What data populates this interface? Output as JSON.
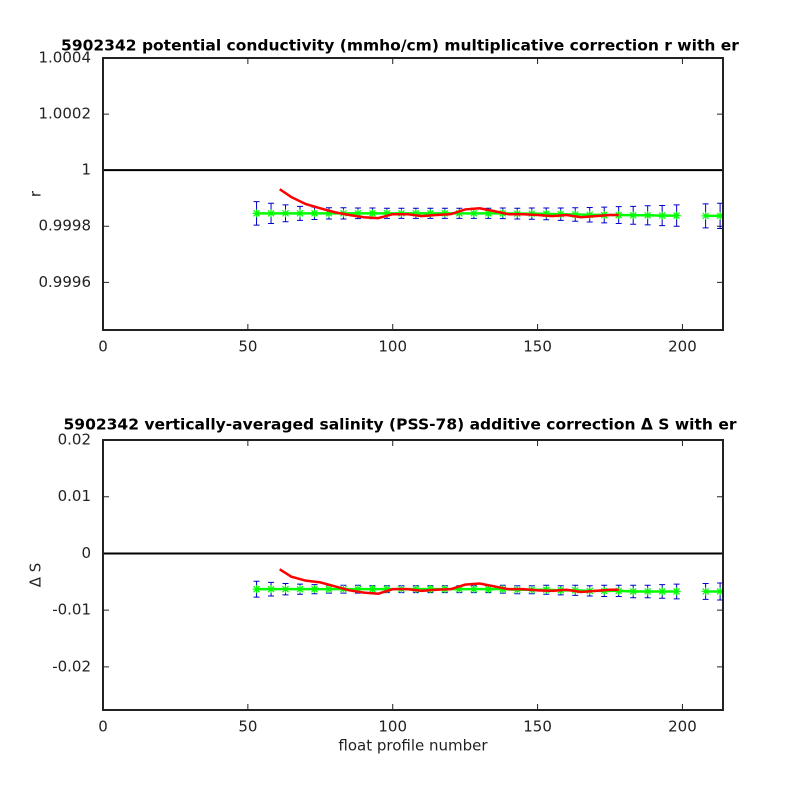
{
  "chart_data": [
    {
      "type": "line",
      "title": "5902342 potential conductivity (mmho/cm) multiplicative correction r with er",
      "ylabel": "r",
      "xlim": [
        0,
        214
      ],
      "xticks": [
        0,
        50,
        100,
        150,
        200
      ],
      "ylim": [
        0.99943,
        1.0004
      ],
      "yticks": [
        0.9996,
        0.9998,
        1,
        1.0002,
        1.0004
      ],
      "reference_line": 1,
      "series": [
        {
          "color": "#00ff00",
          "error_color": "#0000cc",
          "marker": "asterisk",
          "x": [
            53,
            58,
            63,
            68,
            73,
            78,
            83,
            88,
            93,
            98,
            103,
            108,
            113,
            118,
            123,
            128,
            133,
            138,
            143,
            148,
            153,
            158,
            163,
            168,
            173,
            178,
            183,
            188,
            193,
            198,
            203,
            208,
            213
          ],
          "values": [
            0.999846,
            0.999846,
            0.999846,
            0.999846,
            0.999846,
            0.999846,
            0.999846,
            0.999846,
            0.999846,
            0.999846,
            0.999846,
            0.999846,
            0.999846,
            0.999846,
            0.999846,
            0.999846,
            0.999846,
            0.999846,
            0.999845,
            0.999845,
            0.999844,
            0.999843,
            0.999842,
            0.999841,
            0.99984,
            0.99984,
            0.999839,
            0.999839,
            0.999838,
            0.999838,
            null,
            0.999837,
            0.999837
          ],
          "errors": [
            4.2e-05,
            3.6e-05,
            3e-05,
            2.5e-05,
            2.2e-05,
            2e-05,
            2e-05,
            1.9e-05,
            1.9e-05,
            1.8e-05,
            1.8e-05,
            1.8e-05,
            1.8e-05,
            1.8e-05,
            1.8e-05,
            1.8e-05,
            1.8e-05,
            1.9e-05,
            1.9e-05,
            2e-05,
            2.1e-05,
            2.2e-05,
            2.4e-05,
            2.6e-05,
            2.8e-05,
            3e-05,
            3.2e-05,
            3.4e-05,
            3.6e-05,
            3.8e-05,
            null,
            4.3e-05,
            4.5e-05
          ]
        },
        {
          "color": "#ff0000",
          "x": [
            61,
            65,
            70,
            75,
            80,
            85,
            90,
            95,
            100,
            105,
            110,
            115,
            120,
            125,
            130,
            135,
            140,
            145,
            150,
            155,
            160,
            165,
            170,
            175,
            178
          ],
          "values": [
            0.999932,
            0.999904,
            0.999879,
            0.999864,
            0.99985,
            0.99984,
            0.999832,
            0.999829,
            0.999843,
            0.999843,
            0.999836,
            0.99984,
            0.999843,
            0.99986,
            0.999864,
            0.999854,
            0.999843,
            0.999843,
            0.99984,
            0.999836,
            0.99984,
            0.999832,
            0.999836,
            0.99984,
            0.99984
          ]
        }
      ]
    },
    {
      "type": "line",
      "title": "5902342 vertically-averaged salinity (PSS-78) additive correction Δ S with er",
      "ylabel": "Δ S",
      "xlabel": "float profile number",
      "xlim": [
        0,
        214
      ],
      "xticks": [
        0,
        50,
        100,
        150,
        200
      ],
      "ylim": [
        -0.0276,
        0.02
      ],
      "yticks": [
        -0.02,
        -0.01,
        0,
        0.01,
        0.02
      ],
      "reference_line": 0,
      "series": [
        {
          "color": "#00ff00",
          "error_color": "#0000cc",
          "marker": "asterisk",
          "x": [
            53,
            58,
            63,
            68,
            73,
            78,
            83,
            88,
            93,
            98,
            103,
            108,
            113,
            118,
            123,
            128,
            133,
            138,
            143,
            148,
            153,
            158,
            163,
            168,
            173,
            178,
            183,
            188,
            193,
            198,
            203,
            208,
            213
          ],
          "values": [
            -0.0063,
            -0.0063,
            -0.0063,
            -0.0063,
            -0.0063,
            -0.0063,
            -0.0063,
            -0.0063,
            -0.0063,
            -0.0063,
            -0.0063,
            -0.0063,
            -0.0063,
            -0.0063,
            -0.0063,
            -0.0063,
            -0.0063,
            -0.0063,
            -0.0064,
            -0.0064,
            -0.0064,
            -0.0065,
            -0.0065,
            -0.0066,
            -0.0066,
            -0.0066,
            -0.0067,
            -0.0067,
            -0.0067,
            -0.0067,
            null,
            -0.0067,
            -0.0067
          ],
          "errors": [
            0.0014,
            0.0012,
            0.001,
            0.0009,
            0.0008,
            0.0007,
            0.0007,
            0.0007,
            0.0006,
            0.0006,
            0.0006,
            0.0006,
            0.0006,
            0.0006,
            0.0006,
            0.0006,
            0.0006,
            0.0007,
            0.0007,
            0.0007,
            0.0008,
            0.0008,
            0.0009,
            0.0009,
            0.001,
            0.001,
            0.0011,
            0.0011,
            0.0012,
            0.0013,
            null,
            0.0014,
            0.0015
          ]
        },
        {
          "color": "#ff0000",
          "x": [
            61,
            65,
            70,
            75,
            80,
            85,
            90,
            95,
            100,
            105,
            110,
            115,
            120,
            125,
            130,
            135,
            140,
            145,
            150,
            155,
            160,
            165,
            170,
            175,
            178
          ],
          "values": [
            -0.0028,
            -0.0041,
            -0.0048,
            -0.0051,
            -0.0058,
            -0.0065,
            -0.0069,
            -0.0071,
            -0.0063,
            -0.0063,
            -0.0066,
            -0.0064,
            -0.0063,
            -0.0055,
            -0.0053,
            -0.0058,
            -0.0063,
            -0.0063,
            -0.0065,
            -0.0066,
            -0.0064,
            -0.0068,
            -0.0066,
            -0.0064,
            -0.0064
          ]
        }
      ]
    }
  ]
}
